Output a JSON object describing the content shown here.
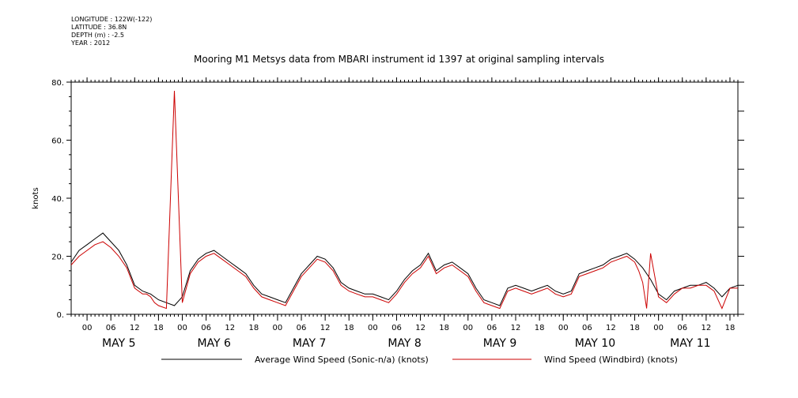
{
  "header": {
    "longitude": "LONGITUDE : 122W(-122)",
    "latitude": "LATITUDE : 36.8N",
    "depth": "DEPTH (m) : -2.5",
    "year": "YEAR : 2012"
  },
  "chart_data": {
    "type": "line",
    "title": "Mooring M1 Metsys data from MBARI instrument id 1397 at original sampling intervals",
    "ylabel": "knots",
    "xlabel": "",
    "ylim": [
      0,
      80
    ],
    "yticks": [
      "0.",
      "20.",
      "40.",
      "60.",
      "80."
    ],
    "x_unit": "hours since 2012-05-04 20:00",
    "xlim": [
      0,
      168
    ],
    "hour_labels": [
      "00",
      "06",
      "12",
      "18"
    ],
    "days": [
      "MAY  5",
      "MAY  6",
      "MAY  7",
      "MAY  8",
      "MAY  9",
      "MAY 10",
      "MAY 11"
    ],
    "grid": false,
    "legend_position": "bottom",
    "series": [
      {
        "name": "Average Wind Speed (Sonic-n/a) (knots)",
        "color": "#000000",
        "x": [
          0,
          2,
          4,
          6,
          8,
          10,
          12,
          14,
          16,
          18,
          20,
          22,
          24,
          26,
          28,
          30,
          32,
          34,
          36,
          38,
          40,
          42,
          44,
          46,
          48,
          50,
          52,
          54,
          56,
          58,
          60,
          62,
          64,
          66,
          68,
          70,
          72,
          74,
          76,
          78,
          80,
          82,
          84,
          86,
          88,
          90,
          92,
          94,
          96,
          98,
          100,
          102,
          104,
          106,
          108,
          110,
          112,
          114,
          116,
          118,
          120,
          122,
          124,
          126,
          128,
          130,
          132,
          134,
          136,
          138,
          140,
          142,
          144,
          146,
          148,
          150,
          152,
          154,
          156,
          158,
          160,
          162,
          164,
          166,
          168
        ],
        "y": [
          18,
          22,
          24,
          26,
          28,
          25,
          22,
          17,
          10,
          8,
          7,
          5,
          4,
          3,
          6,
          15,
          19,
          21,
          22,
          20,
          18,
          16,
          14,
          10,
          7,
          6,
          5,
          4,
          9,
          14,
          17,
          20,
          19,
          16,
          11,
          9,
          8,
          7,
          7,
          6,
          5,
          8,
          12,
          15,
          17,
          21,
          15,
          17,
          18,
          16,
          14,
          9,
          5,
          4,
          3,
          9,
          10,
          9,
          8,
          9,
          10,
          8,
          7,
          8,
          14,
          15,
          16,
          17,
          19,
          20,
          21,
          19,
          16,
          12,
          7,
          5,
          8,
          9,
          10,
          10,
          11,
          9,
          6,
          9,
          10
        ]
      },
      {
        "name": "Wind Speed (Windbird) (knots)",
        "color": "#cc0000",
        "x": [
          0,
          2,
          4,
          6,
          8,
          10,
          12,
          14,
          16,
          18,
          19,
          20,
          21,
          22,
          24,
          26,
          28,
          30,
          32,
          34,
          36,
          38,
          40,
          42,
          44,
          46,
          48,
          50,
          52,
          54,
          56,
          58,
          60,
          62,
          64,
          66,
          68,
          70,
          72,
          74,
          76,
          78,
          80,
          82,
          84,
          86,
          88,
          90,
          92,
          94,
          96,
          98,
          100,
          102,
          104,
          106,
          108,
          110,
          112,
          114,
          116,
          118,
          120,
          122,
          124,
          126,
          128,
          130,
          132,
          134,
          136,
          138,
          140,
          142,
          143,
          144,
          145,
          146,
          148,
          150,
          152,
          154,
          156,
          158,
          160,
          162,
          164,
          166,
          168
        ],
        "y": [
          17,
          20,
          22,
          24,
          25,
          23,
          20,
          16,
          9,
          7,
          7,
          6,
          4,
          3,
          2,
          77,
          4,
          14,
          18,
          20,
          21,
          19,
          17,
          15,
          13,
          9,
          6,
          5,
          4,
          3,
          8,
          13,
          16,
          19,
          18,
          15,
          10,
          8,
          7,
          6,
          6,
          5,
          4,
          7,
          11,
          14,
          16,
          20,
          14,
          16,
          17,
          15,
          13,
          8,
          4,
          3,
          2,
          8,
          9,
          8,
          7,
          8,
          9,
          7,
          6,
          7,
          13,
          14,
          15,
          16,
          18,
          19,
          20,
          18,
          15,
          11,
          2,
          21,
          6,
          4,
          7,
          9,
          9,
          10,
          10,
          8,
          2,
          9,
          9
        ]
      }
    ]
  }
}
